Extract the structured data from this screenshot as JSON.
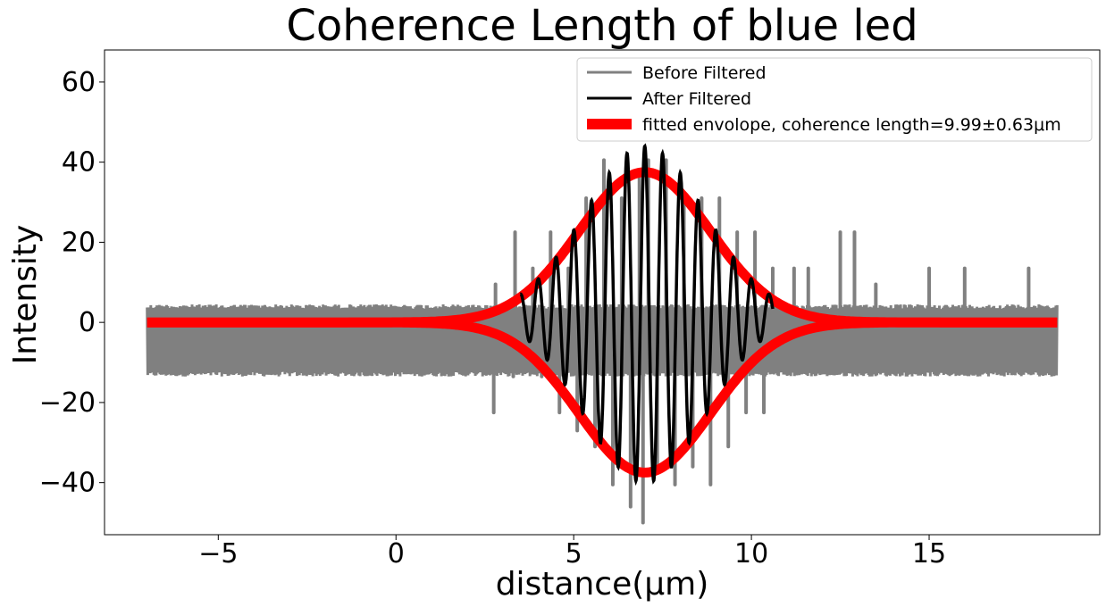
{
  "chart_data": {
    "type": "line",
    "title": "Coherence Length of blue led",
    "xlabel": "distance(μm)",
    "ylabel": "Intensity",
    "xlim": [
      -8.2,
      19.8
    ],
    "ylim": [
      -53,
      68
    ],
    "xticks": [
      -5,
      0,
      5,
      10,
      15
    ],
    "xtick_labels": [
      "−5",
      "0",
      "5",
      "10",
      "15"
    ],
    "yticks": [
      -40,
      -20,
      0,
      20,
      40,
      60
    ],
    "ytick_labels": [
      "−40",
      "−20",
      "0",
      "20",
      "40",
      "60"
    ],
    "grid": false,
    "legend_position": "top-right",
    "series": [
      {
        "name": "Before Filtered",
        "color": "#808080",
        "x_range": [
          -7,
          18.6
        ],
        "baseline_band": [
          -13.5,
          4.5
        ],
        "spikes": [
          {
            "x": 2.8,
            "y": 9.5
          },
          {
            "x": 2.75,
            "y": -22.5
          },
          {
            "x": 3.3,
            "y": -13.5
          },
          {
            "x": 3.35,
            "y": 22.5
          },
          {
            "x": 3.85,
            "y": 13.5
          },
          {
            "x": 4.1,
            "y": -13.5
          },
          {
            "x": 4.35,
            "y": 22.5
          },
          {
            "x": 4.6,
            "y": -22.5
          },
          {
            "x": 4.85,
            "y": 13.5
          },
          {
            "x": 5.1,
            "y": -27
          },
          {
            "x": 5.35,
            "y": 31
          },
          {
            "x": 5.6,
            "y": -31
          },
          {
            "x": 5.85,
            "y": 40.5
          },
          {
            "x": 6.1,
            "y": -40.5
          },
          {
            "x": 6.35,
            "y": 31
          },
          {
            "x": 6.6,
            "y": -46
          },
          {
            "x": 6.85,
            "y": 36
          },
          {
            "x": 6.95,
            "y": -50
          },
          {
            "x": 7.1,
            "y": 40.5
          },
          {
            "x": 7.35,
            "y": -36
          },
          {
            "x": 7.6,
            "y": 40.5
          },
          {
            "x": 7.85,
            "y": -40.5
          },
          {
            "x": 8.1,
            "y": 31
          },
          {
            "x": 8.35,
            "y": -36
          },
          {
            "x": 8.6,
            "y": 31
          },
          {
            "x": 8.85,
            "y": -40.5
          },
          {
            "x": 9.1,
            "y": 31
          },
          {
            "x": 9.35,
            "y": -31
          },
          {
            "x": 9.6,
            "y": 22.5
          },
          {
            "x": 9.85,
            "y": -22.5
          },
          {
            "x": 10.1,
            "y": 22.5
          },
          {
            "x": 10.35,
            "y": -22.5
          },
          {
            "x": 10.6,
            "y": 13.5
          },
          {
            "x": 11.2,
            "y": 13.5
          },
          {
            "x": 11.6,
            "y": 13.5
          },
          {
            "x": 12.5,
            "y": 22.5
          },
          {
            "x": 12.9,
            "y": 22.5
          },
          {
            "x": 13.5,
            "y": 9.5
          },
          {
            "x": 15.0,
            "y": 13.5
          },
          {
            "x": 16.0,
            "y": 13.5
          },
          {
            "x": 17.8,
            "y": 13.5
          }
        ]
      },
      {
        "name": "After Filtered",
        "color": "#000000",
        "x_range": [
          3.5,
          10.6
        ],
        "center": 7.0,
        "amplitude": 42,
        "envelope_sigma": 1.7,
        "period": 0.5
      },
      {
        "name": "fitted envolope, coherence length=9.99±0.63μm",
        "color": "#ff0000",
        "x_range": [
          -7,
          18.6
        ],
        "center": 7.0,
        "amplitude": 37.5,
        "sigma": 1.85
      }
    ]
  }
}
